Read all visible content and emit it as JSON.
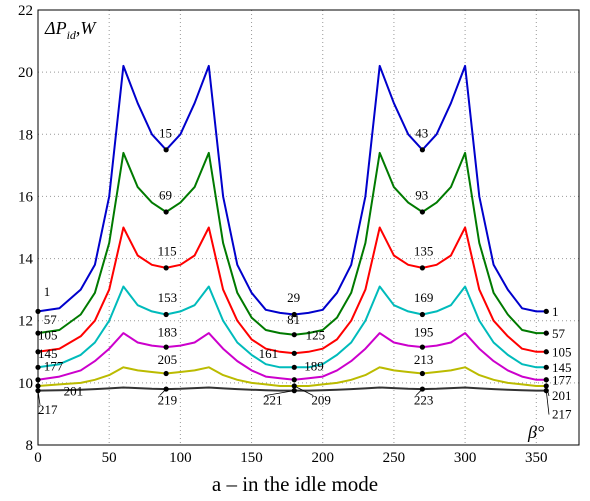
{
  "chart_data": {
    "type": "line",
    "ylabel": "ΔPid,W",
    "xlabel": "β°",
    "caption": "a – in the idle mode",
    "xlim": [
      0,
      380
    ],
    "ylim": [
      8,
      22
    ],
    "xticks": [
      0,
      50,
      100,
      150,
      200,
      250,
      300,
      350
    ],
    "yticks": [
      8,
      10,
      12,
      14,
      16,
      18,
      20,
      22
    ],
    "grid": true,
    "x": [
      0,
      15,
      30,
      40,
      50,
      60,
      70,
      80,
      90,
      100,
      110,
      120,
      130,
      140,
      150,
      160,
      170,
      180,
      190,
      200,
      210,
      220,
      230,
      240,
      250,
      260,
      270,
      280,
      290,
      300,
      310,
      320,
      330,
      340,
      350,
      357
    ],
    "series": [
      {
        "color": "#0000cc",
        "values": [
          12.3,
          12.4,
          13.0,
          13.8,
          16.0,
          20.2,
          19.0,
          18.0,
          17.5,
          18.0,
          19.0,
          20.2,
          16.0,
          13.8,
          12.9,
          12.35,
          12.25,
          12.2,
          12.25,
          12.35,
          12.9,
          13.8,
          16.0,
          20.2,
          19.0,
          18.0,
          17.5,
          18.0,
          19.0,
          20.2,
          16.0,
          13.8,
          13.0,
          12.4,
          12.3,
          12.3
        ]
      },
      {
        "color": "#007a00",
        "values": [
          11.6,
          11.7,
          12.2,
          12.9,
          14.5,
          17.4,
          16.3,
          15.8,
          15.5,
          15.8,
          16.3,
          17.4,
          14.5,
          12.9,
          12.1,
          11.7,
          11.6,
          11.55,
          11.6,
          11.7,
          12.1,
          12.9,
          14.5,
          17.4,
          16.3,
          15.8,
          15.5,
          15.8,
          16.3,
          17.4,
          14.5,
          12.9,
          12.2,
          11.7,
          11.6,
          11.6
        ]
      },
      {
        "color": "#ff0000",
        "values": [
          11.0,
          11.1,
          11.5,
          12.0,
          13.0,
          15.0,
          14.1,
          13.8,
          13.7,
          13.8,
          14.1,
          15.0,
          13.0,
          12.0,
          11.4,
          11.1,
          11.0,
          10.95,
          11.0,
          11.1,
          11.4,
          12.0,
          13.0,
          15.0,
          14.1,
          13.8,
          13.7,
          13.8,
          14.1,
          15.0,
          13.0,
          12.0,
          11.5,
          11.1,
          11.0,
          11.0
        ]
      },
      {
        "color": "#00bbbb",
        "values": [
          10.5,
          10.6,
          10.9,
          11.3,
          12.0,
          13.1,
          12.5,
          12.3,
          12.2,
          12.3,
          12.5,
          13.1,
          12.0,
          11.3,
          10.9,
          10.6,
          10.5,
          10.5,
          10.5,
          10.6,
          10.9,
          11.3,
          12.0,
          13.1,
          12.5,
          12.3,
          12.2,
          12.3,
          12.5,
          13.1,
          12.0,
          11.3,
          10.9,
          10.6,
          10.5,
          10.5
        ]
      },
      {
        "color": "#cc00cc",
        "values": [
          10.1,
          10.2,
          10.4,
          10.7,
          11.1,
          11.6,
          11.3,
          11.2,
          11.15,
          11.2,
          11.3,
          11.6,
          11.1,
          10.7,
          10.4,
          10.2,
          10.15,
          10.1,
          10.15,
          10.2,
          10.4,
          10.7,
          11.1,
          11.6,
          11.3,
          11.2,
          11.15,
          11.2,
          11.3,
          11.6,
          11.1,
          10.7,
          10.4,
          10.2,
          10.1,
          10.1
        ]
      },
      {
        "color": "#bbbb00",
        "values": [
          9.9,
          9.95,
          10.0,
          10.1,
          10.25,
          10.5,
          10.4,
          10.35,
          10.3,
          10.35,
          10.4,
          10.5,
          10.25,
          10.1,
          10.0,
          9.95,
          9.9,
          9.9,
          9.9,
          9.95,
          10.0,
          10.1,
          10.25,
          10.5,
          10.4,
          10.35,
          10.3,
          10.35,
          10.4,
          10.5,
          10.25,
          10.1,
          10.0,
          9.95,
          9.9,
          9.9
        ]
      },
      {
        "color": "#333333",
        "values": [
          9.75,
          9.76,
          9.78,
          9.8,
          9.82,
          9.85,
          9.83,
          9.81,
          9.8,
          9.81,
          9.83,
          9.85,
          9.82,
          9.8,
          9.78,
          9.76,
          9.75,
          9.75,
          9.75,
          9.76,
          9.78,
          9.8,
          9.82,
          9.85,
          9.83,
          9.81,
          9.8,
          9.81,
          9.83,
          9.85,
          9.82,
          9.8,
          9.78,
          9.76,
          9.75,
          9.75
        ]
      }
    ],
    "annotations": [
      {
        "text": "1",
        "x": 0,
        "y": 12.3,
        "tx": 4,
        "ty": 12.8
      },
      {
        "text": "57",
        "x": 0,
        "y": 11.6,
        "tx": 4,
        "ty": 11.9
      },
      {
        "text": "105",
        "x": 0,
        "y": 11.0,
        "tx": 0,
        "ty": 11.4
      },
      {
        "text": "145",
        "x": 0,
        "y": 10.5,
        "tx": 0,
        "ty": 10.8
      },
      {
        "text": "177",
        "x": 0,
        "y": 10.1,
        "tx": 4,
        "ty": 10.4
      },
      {
        "text": "201",
        "x": 0,
        "y": 9.9,
        "tx": 18,
        "ty": 9.6
      },
      {
        "text": "217",
        "x": 0,
        "y": 9.75,
        "tx": 0,
        "ty": 9.0
      },
      {
        "text": "15",
        "x": 90,
        "y": 17.5,
        "tx": 85,
        "ty": 17.9
      },
      {
        "text": "69",
        "x": 90,
        "y": 15.5,
        "tx": 85,
        "ty": 15.9
      },
      {
        "text": "115",
        "x": 90,
        "y": 13.7,
        "tx": 84,
        "ty": 14.1
      },
      {
        "text": "153",
        "x": 90,
        "y": 12.2,
        "tx": 84,
        "ty": 12.6
      },
      {
        "text": "183",
        "x": 90,
        "y": 11.15,
        "tx": 84,
        "ty": 11.5
      },
      {
        "text": "205",
        "x": 90,
        "y": 10.3,
        "tx": 84,
        "ty": 10.6
      },
      {
        "text": "219",
        "x": 90,
        "y": 9.8,
        "tx": 84,
        "ty": 9.3
      },
      {
        "text": "29",
        "x": 180,
        "y": 12.2,
        "tx": 175,
        "ty": 12.6
      },
      {
        "text": "81",
        "x": 180,
        "y": 11.55,
        "tx": 175,
        "ty": 11.9
      },
      {
        "text": "125",
        "x": 180,
        "y": 10.95,
        "tx": 188,
        "ty": 11.4
      },
      {
        "text": "161",
        "x": 180,
        "y": 10.5,
        "tx": 155,
        "ty": 10.8
      },
      {
        "text": "189",
        "x": 180,
        "y": 10.1,
        "tx": 187,
        "ty": 10.4
      },
      {
        "text": "221",
        "x": 180,
        "y": 9.75,
        "tx": 158,
        "ty": 9.3
      },
      {
        "text": "209",
        "x": 180,
        "y": 9.9,
        "tx": 192,
        "ty": 9.3
      },
      {
        "text": "43",
        "x": 270,
        "y": 17.5,
        "tx": 265,
        "ty": 17.9
      },
      {
        "text": "93",
        "x": 270,
        "y": 15.5,
        "tx": 265,
        "ty": 15.9
      },
      {
        "text": "135",
        "x": 270,
        "y": 13.7,
        "tx": 264,
        "ty": 14.1
      },
      {
        "text": "169",
        "x": 270,
        "y": 12.2,
        "tx": 264,
        "ty": 12.6
      },
      {
        "text": "195",
        "x": 270,
        "y": 11.15,
        "tx": 264,
        "ty": 11.5
      },
      {
        "text": "213",
        "x": 270,
        "y": 10.3,
        "tx": 264,
        "ty": 10.6
      },
      {
        "text": "223",
        "x": 270,
        "y": 9.8,
        "tx": 264,
        "ty": 9.3
      }
    ],
    "right_labels": [
      {
        "text": "1",
        "y": 12.3,
        "ty": 12.15
      },
      {
        "text": "57",
        "y": 11.6,
        "ty": 11.45
      },
      {
        "text": "105",
        "y": 11.0,
        "ty": 10.85
      },
      {
        "text": "145",
        "y": 10.5,
        "ty": 10.35
      },
      {
        "text": "177",
        "y": 10.1,
        "ty": 9.95
      },
      {
        "text": "201",
        "y": 9.9,
        "ty": 9.45
      },
      {
        "text": "217",
        "y": 9.75,
        "ty": 8.85
      }
    ]
  }
}
